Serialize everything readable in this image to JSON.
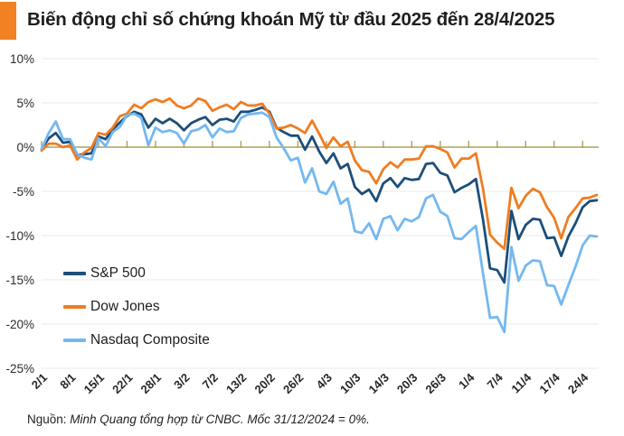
{
  "header": {
    "title": "Biến động chỉ số chứng khoán Mỹ từ đầu 2025 đến 28/4/2025",
    "accent_color": "#f18122"
  },
  "footer": {
    "prefix": "Nguồn:",
    "text": " Minh Quang tổng hợp từ CNBC. Mốc 31/12/2024 = 0%."
  },
  "colors": {
    "grid": "#e9e9e9",
    "baseline": "#b0a059",
    "axis_text": "#2b2b2b"
  },
  "chart_data": {
    "type": "line",
    "title": "Biến động chỉ số chứng khoán Mỹ từ đầu 2025 đến 28/4/2025",
    "xlabel": "",
    "ylabel": "",
    "ylim": [
      -25,
      10
    ],
    "grid": true,
    "legend_position": "inside-bottom-left",
    "baseline_note": "Mốc 31/12/2024 = 0%",
    "y_ticks": [
      "10%",
      "5%",
      "0%",
      "-5%",
      "-10%",
      "-15%",
      "-20%",
      "-25%"
    ],
    "x_tick_every": 4,
    "x_tick_labels": [
      "2/1",
      "8/1",
      "15/1",
      "22/1",
      "28/1",
      "3/2",
      "7/2",
      "13/2",
      "20/2",
      "26/2",
      "4/3",
      "10/3",
      "14/3",
      "20/3",
      "26/3",
      "1/4",
      "7/4",
      "11/4",
      "17/4",
      "24/4"
    ],
    "x": [
      "2/1",
      "3/1",
      "6/1",
      "7/1",
      "8/1",
      "10/1",
      "13/1",
      "14/1",
      "15/1",
      "16/1",
      "17/1",
      "21/1",
      "22/1",
      "23/1",
      "24/1",
      "27/1",
      "28/1",
      "29/1",
      "30/1",
      "31/1",
      "3/2",
      "4/2",
      "5/2",
      "6/2",
      "7/2",
      "10/2",
      "11/2",
      "12/2",
      "13/2",
      "14/2",
      "18/2",
      "19/2",
      "20/2",
      "21/2",
      "24/2",
      "25/2",
      "26/2",
      "27/2",
      "28/2",
      "3/3",
      "4/3",
      "5/3",
      "6/3",
      "7/3",
      "10/3",
      "11/3",
      "12/3",
      "13/3",
      "14/3",
      "17/3",
      "18/3",
      "19/3",
      "20/3",
      "21/3",
      "24/3",
      "25/3",
      "26/3",
      "27/3",
      "28/3",
      "31/3",
      "1/4",
      "2/4",
      "3/4",
      "4/4",
      "7/4",
      "8/4",
      "9/4",
      "10/4",
      "11/4",
      "14/4",
      "15/4",
      "16/4",
      "17/4",
      "21/4",
      "22/4",
      "23/4",
      "24/4",
      "25/4",
      "28/4"
    ],
    "unit": "%",
    "series": [
      {
        "name": "S&P 500",
        "color": "#1d4e79",
        "values": [
          -0.2,
          1.0,
          1.6,
          0.5,
          0.6,
          -0.9,
          -0.8,
          -0.7,
          1.2,
          0.9,
          2.0,
          2.8,
          3.5,
          4.0,
          3.7,
          2.2,
          3.2,
          2.7,
          3.2,
          2.7,
          1.9,
          2.7,
          3.1,
          3.4,
          2.5,
          3.1,
          3.2,
          2.9,
          4.0,
          4.0,
          4.2,
          4.5,
          4.0,
          2.2,
          1.7,
          1.3,
          1.3,
          -0.3,
          1.2,
          -0.5,
          -1.8,
          -0.7,
          -2.4,
          -1.9,
          -4.5,
          -5.3,
          -4.8,
          -6.1,
          -4.1,
          -3.5,
          -4.5,
          -3.5,
          -3.7,
          -3.6,
          -1.9,
          -1.8,
          -2.9,
          -3.2,
          -5.1,
          -4.6,
          -4.2,
          -3.6,
          -8.2,
          -13.7,
          -13.9,
          -15.3,
          -7.2,
          -10.4,
          -8.8,
          -8.1,
          -8.2,
          -10.3,
          -10.2,
          -12.3,
          -10.1,
          -8.6,
          -6.8,
          -6.1,
          -6.0
        ]
      },
      {
        "name": "Dow Jones",
        "color": "#ef7d22",
        "values": [
          -0.4,
          0.4,
          0.4,
          0.0,
          0.2,
          -1.4,
          -0.6,
          -0.1,
          1.6,
          1.4,
          2.2,
          3.5,
          3.8,
          4.8,
          4.4,
          5.1,
          5.4,
          5.1,
          5.5,
          4.7,
          4.4,
          4.7,
          5.5,
          5.2,
          4.1,
          4.5,
          4.8,
          4.3,
          5.1,
          4.7,
          4.7,
          4.9,
          3.8,
          2.1,
          2.2,
          2.5,
          2.1,
          1.6,
          3.0,
          1.5,
          -0.1,
          1.1,
          0.1,
          0.6,
          -1.5,
          -2.6,
          -2.8,
          -4.1,
          -2.5,
          -1.7,
          -2.3,
          -1.4,
          -1.4,
          -1.3,
          0.1,
          0.1,
          -0.2,
          -0.6,
          -2.3,
          -1.3,
          -1.3,
          -0.7,
          -4.7,
          -9.9,
          -10.8,
          -11.5,
          -4.6,
          -6.9,
          -5.5,
          -4.7,
          -5.1,
          -6.8,
          -8.0,
          -10.3,
          -7.9,
          -6.9,
          -5.8,
          -5.7,
          -5.4
        ]
      },
      {
        "name": "Nasdaq Composite",
        "color": "#74b8f0",
        "values": [
          -0.2,
          1.6,
          2.9,
          0.9,
          0.9,
          -0.8,
          -1.2,
          -1.4,
          1.0,
          0.1,
          1.7,
          2.3,
          3.6,
          3.8,
          3.3,
          0.2,
          2.2,
          1.7,
          1.9,
          1.6,
          0.4,
          1.8,
          2.0,
          2.5,
          1.1,
          2.1,
          1.7,
          1.8,
          3.3,
          3.7,
          3.8,
          3.9,
          3.4,
          1.1,
          -0.1,
          -1.5,
          -1.2,
          -4.0,
          -2.4,
          -5.0,
          -5.3,
          -3.9,
          -6.4,
          -5.8,
          -9.5,
          -9.7,
          -8.6,
          -10.4,
          -8.1,
          -7.8,
          -9.4,
          -8.1,
          -8.4,
          -7.9,
          -5.8,
          -5.4,
          -7.3,
          -7.8,
          -10.3,
          -10.4,
          -9.6,
          -8.9,
          -14.3,
          -19.3,
          -19.2,
          -20.9,
          -11.3,
          -15.1,
          -13.4,
          -12.8,
          -12.9,
          -15.6,
          -15.7,
          -17.8,
          -15.6,
          -13.5,
          -11.1,
          -10.0,
          -10.1
        ]
      }
    ]
  }
}
